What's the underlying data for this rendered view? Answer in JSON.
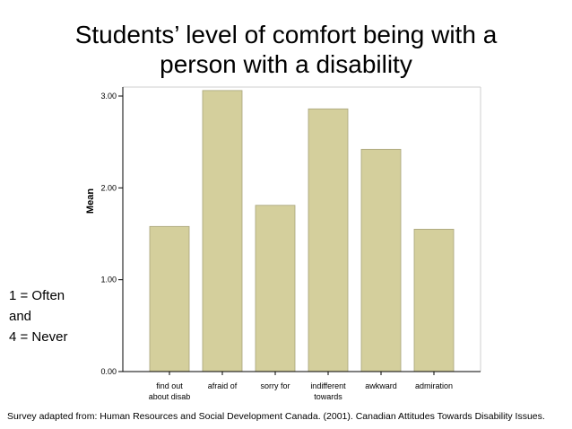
{
  "title_line1": "Students’ level of comfort being with a",
  "title_line2": "person with a disability",
  "scale_note": {
    "line1": "1 = Often",
    "line2": "and",
    "line3": "4 = Never"
  },
  "footer": "Survey adapted from: Human Resources and Social Development Canada.  (2001).  Canadian Attitudes Towards Disability Issues.",
  "chart_data": {
    "type": "bar",
    "categories": [
      [
        "find out",
        "about disab"
      ],
      [
        "afraid of"
      ],
      [
        "sorry for"
      ],
      [
        "indifferent",
        "towards"
      ],
      [
        "awkward"
      ],
      [
        "admiration"
      ]
    ],
    "values": [
      1.58,
      3.06,
      1.81,
      2.86,
      2.42,
      1.55
    ],
    "ylabel": "Mean",
    "yticks": [
      "0.00",
      "1.00",
      "2.00",
      "3.00"
    ],
    "ylim": [
      0,
      3.1
    ],
    "grid": false,
    "bar_color": "#d4cf9c",
    "bar_stroke": "#a8a37a"
  }
}
